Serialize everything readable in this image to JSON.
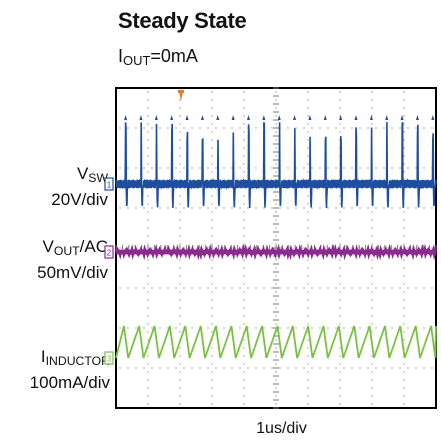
{
  "header": {
    "title": "Steady State",
    "subtitle_main": "I",
    "subtitle_sub": "OUT",
    "subtitle_rest": "=0mA"
  },
  "chart_data": {
    "type": "line",
    "title": "Steady State",
    "subtitle": "IOUT=0mA",
    "xlabel": "1us/div",
    "grid": true,
    "divisions": {
      "x": 10,
      "y": 8
    },
    "time_per_div_us": 1,
    "trigger_marker": "T",
    "series": [
      {
        "name": "VSW",
        "label_main": "V",
        "label_sub": "SW",
        "scale": "20V/div",
        "channel": "1",
        "color": "#1f4e9e",
        "baseline_div": 5.6,
        "pulse_period_us": 0.48,
        "pulse_height_div": 1.55,
        "waveform": "switching pulses"
      },
      {
        "name": "VOUT/AC",
        "label_main": "V",
        "label_sub": "OUT",
        "label_rest": "/AC",
        "scale": "50mV/div",
        "channel": "2",
        "color": "#8b2a8f",
        "baseline_div": 3.9,
        "ripple_div": 0.05,
        "waveform": "flat ripple"
      },
      {
        "name": "IINDUCTOR",
        "label_main": "I",
        "label_sub": "INDUCTOR",
        "scale": "100mA/div",
        "channel": "3",
        "color": "#7ac143",
        "baseline_div": 1.25,
        "peak_div": 2.05,
        "period_us": 0.48,
        "waveform": "triangular ripple"
      }
    ]
  }
}
